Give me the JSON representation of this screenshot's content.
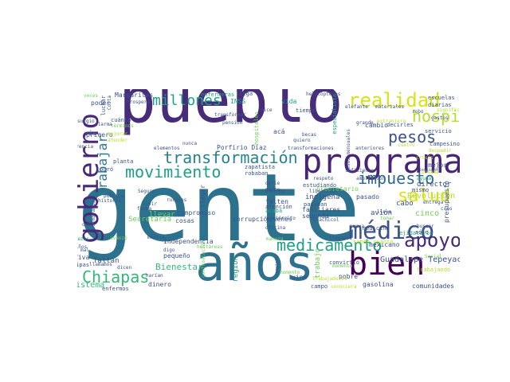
{
  "palette": {
    "dark_purple": "#440154",
    "purple": "#482878",
    "indigo": "#3b528b",
    "teal_blue": "#31688e",
    "teal": "#26828e",
    "sea_green": "#1f9e89",
    "green": "#35b779",
    "light_green": "#6ece58",
    "lime": "#b5de2b",
    "yellow": "#d8e219"
  },
  "words": [
    {
      "text": "gente",
      "color": "#2c728e"
    },
    {
      "text": "pueblo",
      "color": "#472c7a"
    },
    {
      "text": "años",
      "color": "#2c728e"
    },
    {
      "text": "programa",
      "color": "#482475"
    },
    {
      "text": "bien",
      "color": "#440154"
    },
    {
      "text": "gobierno",
      "color": "#482878"
    },
    {
      "text": "médico",
      "color": "#3b528b"
    },
    {
      "text": "transformación",
      "color": "#26828e"
    },
    {
      "text": "movimiento",
      "color": "#1f9e89"
    },
    {
      "text": "medicamento",
      "color": "#1f9e89"
    },
    {
      "text": "apoyo",
      "color": "#482878"
    },
    {
      "text": "Chiapas",
      "color": "#35b779"
    },
    {
      "text": "realidad",
      "color": "#d8e219"
    },
    {
      "text": "millones",
      "color": "#1f9e89"
    },
    {
      "text": "impuesto",
      "color": "#31688e"
    },
    {
      "text": "pesos",
      "color": "#3b528b"
    },
    {
      "text": "hospital",
      "color": "#b5de2b"
    },
    {
      "text": "salud",
      "color": "#d8e219"
    },
    {
      "text": "trabajar",
      "color": "#2a788e"
    },
    {
      "text": "Guadalupe Tepeyac",
      "color": "#3b528b"
    },
    {
      "text": "Bienestar",
      "color": "#35b779"
    },
    {
      "text": "Revolución",
      "color": "#b5de2b"
    },
    {
      "text": "Porfirio Díaz",
      "color": "#3b528b"
    },
    {
      "text": "faltan",
      "color": "#3b528b"
    },
    {
      "text": "pequeño",
      "color": "#3b528b"
    },
    {
      "text": "dinero",
      "color": "#3b528b"
    },
    {
      "text": "sistema",
      "color": "#35b779"
    },
    {
      "text": "enfermos",
      "color": "#3b528b"
    },
    {
      "text": "Independencia",
      "color": "#3b528b"
    },
    {
      "text": "Secretaría",
      "color": "#6ece58"
    },
    {
      "text": "llevar",
      "color": "#6ece58"
    },
    {
      "text": "compromiso",
      "color": "#3b528b"
    },
    {
      "text": "cosas",
      "color": "#3b528b"
    },
    {
      "text": "corrupción",
      "color": "#3b528b"
    },
    {
      "text": "región",
      "color": "#1f9e89"
    },
    {
      "text": "trabajo",
      "color": "#6ece58"
    },
    {
      "text": "vida",
      "color": "#1f9e89"
    },
    {
      "text": "INSS",
      "color": "#1f9e89"
    },
    {
      "text": "poder",
      "color": "#3b528b"
    },
    {
      "text": "cambio",
      "color": "#3b528b"
    },
    {
      "text": "mejor",
      "color": "#3b528b"
    },
    {
      "text": "cinco",
      "color": "#6ece58"
    },
    {
      "text": "cabo",
      "color": "#3b528b"
    },
    {
      "text": "avión",
      "color": "#3b528b"
    },
    {
      "text": "director",
      "color": "#3b528b"
    },
    {
      "text": "indígena",
      "color": "#3b528b"
    },
    {
      "text": "pasado",
      "color": "#3b528b"
    },
    {
      "text": "mexicano",
      "color": "#3b528b"
    },
    {
      "text": "gasolina",
      "color": "#3b528b"
    },
    {
      "text": "comunidades",
      "color": "#3b528b"
    },
    {
      "text": "estudiando",
      "color": "#3b528b"
    },
    {
      "text": "familiares",
      "color": "#3b528b"
    },
    {
      "text": "segunda",
      "color": "#3b528b"
    },
    {
      "text": "robaban",
      "color": "#3b528b"
    },
    {
      "text": "zapatista",
      "color": "#3b528b"
    },
    {
      "text": "planta",
      "color": "#3b528b"
    },
    {
      "text": "logró",
      "color": "#3b528b"
    },
    {
      "text": "primero",
      "color": "#3b528b"
    },
    {
      "text": "vía",
      "color": "#3b528b"
    },
    {
      "text": "cuánto",
      "color": "#3b528b"
    },
    {
      "text": "Margaritas",
      "color": "#3b528b"
    },
    {
      "text": "enfermeras",
      "color": "#1f9e89"
    },
    {
      "text": "llega",
      "color": "#3b528b"
    },
    {
      "text": "tiempo",
      "color": "#3b528b"
    },
    {
      "text": "becas",
      "color": "#3b528b"
    },
    {
      "text": "acá",
      "color": "#3b528b"
    },
    {
      "text": "escuelas",
      "color": "#3b528b"
    },
    {
      "text": "diarias",
      "color": "#3b528b"
    },
    {
      "text": "robo",
      "color": "#3b528b"
    },
    {
      "text": "materiales",
      "color": "#3b528b"
    },
    {
      "text": "servicio",
      "color": "#3b528b"
    },
    {
      "text": "decirles",
      "color": "#3b528b"
    },
    {
      "text": "campesinos",
      "color": "#3b528b"
    },
    {
      "text": "grande",
      "color": "#3b528b"
    },
    {
      "text": "anteriores",
      "color": "#3b528b"
    },
    {
      "text": "transformaciones",
      "color": "#3b528b"
    },
    {
      "text": "suficiente",
      "color": "#3b528b"
    },
    {
      "text": "propietario",
      "color": "#6ece58"
    },
    {
      "text": "Juárez",
      "color": "#3b528b"
    },
    {
      "text": "falten",
      "color": "#3b528b"
    },
    {
      "text": "pagaban",
      "color": "#3b528b"
    },
    {
      "text": "atención",
      "color": "#3b528b"
    },
    {
      "text": "jóvenes",
      "color": "#3b528b"
    },
    {
      "text": "acaba",
      "color": "#1f9e89"
    },
    {
      "text": "ejidatario",
      "color": "#1f9e89"
    },
    {
      "text": "sólo",
      "color": "#3b528b"
    },
    {
      "text": "medicina",
      "color": "#3b528b"
    },
    {
      "text": "saben cuánto",
      "color": "#b5de2b"
    },
    {
      "text": "llegamos",
      "color": "#3b528b"
    },
    {
      "text": "mismo",
      "color": "#3b528b"
    },
    {
      "text": "elecciones",
      "color": "#3b528b"
    },
    {
      "text": "entrega",
      "color": "#3b528b"
    },
    {
      "text": "presupuesto",
      "color": "#3b528b"
    },
    {
      "text": "creo",
      "color": "#3b528b"
    },
    {
      "text": "Social",
      "color": "#6ece58"
    },
    {
      "text": "trabajando",
      "color": "#b5de2b"
    },
    {
      "text": "pobre",
      "color": "#3b528b"
    },
    {
      "text": "campo",
      "color": "#3b528b"
    },
    {
      "text": "vine",
      "color": "#3b528b"
    },
    {
      "text": "completo",
      "color": "#3b528b"
    },
    {
      "text": "convirtió",
      "color": "#3b528b"
    },
    {
      "text": "momento",
      "color": "#6ece58"
    },
    {
      "text": "trabajadores",
      "color": "#b5de2b"
    },
    {
      "text": "conociera",
      "color": "#b5de2b"
    },
    {
      "text": "oficina",
      "color": "#3b528b"
    },
    {
      "text": "manera",
      "color": "#6ece58"
    },
    {
      "text": "hectáreas",
      "color": "#6ece58"
    },
    {
      "text": "médica",
      "color": "#3b528b"
    },
    {
      "text": "digo",
      "color": "#3b528b"
    },
    {
      "text": "harían",
      "color": "#3b528b"
    },
    {
      "text": "confrontación",
      "color": "#6ece58"
    },
    {
      "text": "Seguro",
      "color": "#3b528b"
    },
    {
      "text": "rurales",
      "color": "#3b528b"
    },
    {
      "text": "forma",
      "color": "#3b528b"
    },
    {
      "text": "vivir",
      "color": "#3b528b"
    },
    {
      "text": "pública",
      "color": "#3b528b"
    },
    {
      "text": "historia",
      "color": "#3b528b"
    },
    {
      "text": "Sembrando",
      "color": "#3b528b"
    },
    {
      "text": "llamamos",
      "color": "#3b528b"
    },
    {
      "text": "Viva",
      "color": "#3b528b"
    },
    {
      "text": "pipas",
      "color": "#3b528b"
    },
    {
      "text": "riquezas",
      "color": "#1f9e89"
    },
    {
      "text": "avanzó",
      "color": "#6ece58"
    },
    {
      "text": "términos",
      "color": "#6ece58"
    },
    {
      "text": "hospitales",
      "color": "#6ece58"
    },
    {
      "text": "pensión",
      "color": "#3b528b"
    },
    {
      "text": "especialista",
      "color": "#1f9e89"
    },
    {
      "text": "helicópteros",
      "color": "#3b528b"
    },
    {
      "text": "elefante",
      "color": "#3b528b"
    },
    {
      "text": "nice",
      "color": "#3b528b"
    },
    {
      "text": "Prospera",
      "color": "#3b528b"
    },
    {
      "text": "luchar",
      "color": "#3b528b"
    },
    {
      "text": "Costa",
      "color": "#3b528b"
    },
    {
      "text": "surgió",
      "color": "#3b528b"
    },
    {
      "text": "veces",
      "color": "#6ece58"
    },
    {
      "text": "diferencia",
      "color": "#3b528b"
    },
    {
      "text": "alarma",
      "color": "#3b528b"
    },
    {
      "text": "nunca",
      "color": "#3b528b"
    },
    {
      "text": "elementos",
      "color": "#3b528b"
    },
    {
      "text": "mejorar",
      "color": "#b5de2b"
    },
    {
      "text": "atender",
      "color": "#b5de2b"
    },
    {
      "text": "transformar",
      "color": "#3b528b"
    },
    {
      "text": "lleva",
      "color": "#3b528b"
    },
    {
      "text": "tomar",
      "color": "#6ece58"
    },
    {
      "text": "nueva",
      "color": "#3b528b"
    },
    {
      "text": "buscar",
      "color": "#3b528b"
    },
    {
      "text": "huachicol",
      "color": "#3b528b"
    },
    {
      "text": "libertades",
      "color": "#3b528b"
    },
    {
      "text": "respeto",
      "color": "#3b528b"
    },
    {
      "text": "quiero",
      "color": "#3b528b"
    },
    {
      "text": "pesos mensuales",
      "color": "#3b528b"
    },
    {
      "text": "significa",
      "color": "#b5de2b"
    },
    {
      "text": "extranjero",
      "color": "#b5de2b"
    },
    {
      "text": "cuatro",
      "color": "#b5de2b"
    },
    {
      "text": "gastos",
      "color": "#3b528b"
    },
    {
      "text": "posada",
      "color": "#b5de2b"
    },
    {
      "text": "ayuda",
      "color": "#1f9e89"
    },
    {
      "text": "niños",
      "color": "#3b528b"
    },
    {
      "text": "ocho",
      "color": "#3b528b"
    },
    {
      "text": "mal",
      "color": "#3b528b"
    },
    {
      "text": "dicen",
      "color": "#3b528b"
    },
    {
      "text": "momento",
      "color": "#6ece58"
    },
    {
      "text": "darle",
      "color": "#3b528b"
    },
    {
      "text": "parte",
      "color": "#3b528b"
    },
    {
      "text": "ejército",
      "color": "#3b528b"
    },
    {
      "text": "llegar",
      "color": "#3b528b"
    },
    {
      "text": "ampliación",
      "color": "#3b528b"
    },
    {
      "text": "crisis",
      "color": "#b5de2b"
    },
    {
      "text": "despedir",
      "color": "#b5de2b"
    }
  ]
}
